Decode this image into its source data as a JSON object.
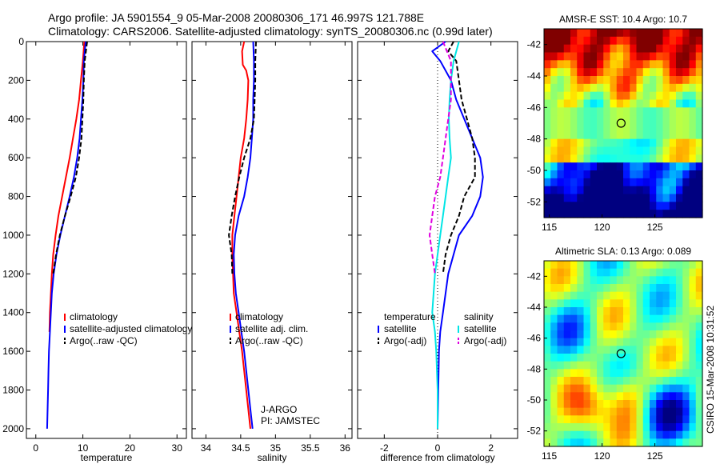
{
  "header": {
    "line1": "Argo profile: JA 5901554_9 05-Mar-2008 20080306_171 46.997S 121.788E",
    "line2": "Climatology: CARS2006. Satellite-adjusted climatology: synTS_20080306.nc (0.99d later)"
  },
  "side_label": "CSIRO 15-Mar-2008 10:31:52",
  "colors": {
    "red": "#ff0000",
    "blue": "#0000ff",
    "black": "#000000",
    "cyan": "#00e5e5",
    "magenta": "#e000e0"
  },
  "chart_data": [
    {
      "type": "line",
      "id": "temperature",
      "xlabel": "temperature",
      "ylabel": "",
      "xlim": [
        -2,
        32
      ],
      "ylim": [
        2050,
        0
      ],
      "xticks": [
        0,
        10,
        20,
        30
      ],
      "yticks": [
        0,
        200,
        400,
        600,
        800,
        1000,
        1200,
        1400,
        1600,
        1800,
        2000
      ],
      "legend": [
        "climatology",
        "satellite-adjusted climatology",
        "Argo(..raw -QC)"
      ],
      "legend_position": "lower-center",
      "series": [
        {
          "name": "climatology",
          "color": "red",
          "dash": "solid",
          "points": [
            [
              10.3,
              0
            ],
            [
              10.0,
              100
            ],
            [
              9.6,
              200
            ],
            [
              9.2,
              300
            ],
            [
              8.6,
              400
            ],
            [
              7.9,
              500
            ],
            [
              7.2,
              600
            ],
            [
              6.4,
              700
            ],
            [
              5.6,
              800
            ],
            [
              4.8,
              900
            ],
            [
              4.2,
              1000
            ],
            [
              3.7,
              1100
            ],
            [
              3.4,
              1200
            ],
            [
              3.2,
              1300
            ],
            [
              3.0,
              1400
            ],
            [
              2.9,
              1500
            ]
          ]
        },
        {
          "name": "satellite-adjusted climatology",
          "color": "blue",
          "dash": "solid",
          "points": [
            [
              10.6,
              0
            ],
            [
              10.2,
              100
            ],
            [
              10.1,
              200
            ],
            [
              9.9,
              300
            ],
            [
              9.6,
              400
            ],
            [
              9.3,
              500
            ],
            [
              8.8,
              600
            ],
            [
              8.1,
              700
            ],
            [
              7.2,
              800
            ],
            [
              6.2,
              900
            ],
            [
              5.2,
              1000
            ],
            [
              4.4,
              1100
            ],
            [
              3.8,
              1200
            ],
            [
              3.4,
              1300
            ],
            [
              3.2,
              1400
            ],
            [
              3.0,
              1500
            ],
            [
              2.8,
              1600
            ],
            [
              2.7,
              1700
            ],
            [
              2.6,
              1800
            ],
            [
              2.5,
              1900
            ],
            [
              2.4,
              2000
            ]
          ]
        },
        {
          "name": "Argo(..raw -QC)",
          "color": "black",
          "dash": "dash",
          "points": [
            [
              10.9,
              0
            ],
            [
              10.4,
              100
            ],
            [
              10.2,
              200
            ],
            [
              10.1,
              300
            ],
            [
              9.9,
              400
            ],
            [
              9.7,
              500
            ],
            [
              9.2,
              600
            ],
            [
              8.5,
              700
            ],
            [
              7.4,
              800
            ],
            [
              6.2,
              900
            ],
            [
              5.1,
              1000
            ],
            [
              4.3,
              1100
            ],
            [
              3.7,
              1200
            ]
          ]
        }
      ]
    },
    {
      "type": "line",
      "id": "salinity",
      "xlabel": "salinity",
      "ylabel": "",
      "xlim": [
        33.8,
        36.1
      ],
      "ylim": [
        2050,
        0
      ],
      "xticks": [
        34,
        34.5,
        35,
        35.5,
        36
      ],
      "yticks": [],
      "legend": [
        "climatology",
        "satellite adj. clim.",
        "Argo(..raw -QC)"
      ],
      "legend_position": "lower-center",
      "annotation": [
        "J-ARGO",
        "PI: JAMSTEC"
      ],
      "series": [
        {
          "name": "climatology",
          "color": "red",
          "dash": "solid",
          "points": [
            [
              34.55,
              0
            ],
            [
              34.52,
              50
            ],
            [
              34.53,
              120
            ],
            [
              34.58,
              150
            ],
            [
              34.61,
              200
            ],
            [
              34.6,
              300
            ],
            [
              34.58,
              400
            ],
            [
              34.55,
              500
            ],
            [
              34.5,
              600
            ],
            [
              34.47,
              700
            ],
            [
              34.44,
              800
            ],
            [
              34.41,
              900
            ],
            [
              34.38,
              1000
            ],
            [
              34.38,
              1100
            ],
            [
              34.39,
              1200
            ],
            [
              34.4,
              1300
            ],
            [
              34.44,
              1400
            ],
            [
              34.48,
              1500
            ],
            [
              34.52,
              1600
            ],
            [
              34.55,
              1700
            ],
            [
              34.58,
              1800
            ],
            [
              34.61,
              1900
            ],
            [
              34.64,
              2000
            ]
          ]
        },
        {
          "name": "satellite adj. clim.",
          "color": "blue",
          "dash": "solid",
          "points": [
            [
              34.68,
              0
            ],
            [
              34.69,
              100
            ],
            [
              34.69,
              200
            ],
            [
              34.68,
              300
            ],
            [
              34.68,
              400
            ],
            [
              34.66,
              500
            ],
            [
              34.64,
              600
            ],
            [
              34.6,
              700
            ],
            [
              34.55,
              800
            ],
            [
              34.47,
              900
            ],
            [
              34.42,
              1000
            ],
            [
              34.4,
              1100
            ],
            [
              34.41,
              1200
            ],
            [
              34.43,
              1300
            ],
            [
              34.47,
              1400
            ],
            [
              34.51,
              1500
            ],
            [
              34.55,
              1600
            ],
            [
              34.58,
              1700
            ],
            [
              34.61,
              1800
            ],
            [
              34.64,
              1900
            ],
            [
              34.67,
              2000
            ]
          ]
        },
        {
          "name": "Argo(..raw -QC)",
          "color": "black",
          "dash": "dash",
          "points": [
            [
              34.72,
              0
            ],
            [
              34.71,
              100
            ],
            [
              34.71,
              200
            ],
            [
              34.7,
              300
            ],
            [
              34.69,
              400
            ],
            [
              34.64,
              500
            ],
            [
              34.55,
              600
            ],
            [
              34.48,
              700
            ],
            [
              34.42,
              800
            ],
            [
              34.37,
              900
            ],
            [
              34.33,
              1000
            ],
            [
              34.37,
              1100
            ],
            [
              34.38,
              1200
            ]
          ]
        }
      ]
    },
    {
      "type": "line",
      "id": "difference",
      "xlabel": "difference from climatology",
      "ylabel": "",
      "xlim": [
        -3,
        3
      ],
      "ylim": [
        2050,
        0
      ],
      "xticks": [
        -2,
        0,
        2
      ],
      "yticks": [],
      "legend_groups": [
        {
          "title": "temperature",
          "entries": [
            "satellite",
            "Argo(-adj)"
          ]
        },
        {
          "title": "salinity",
          "entries": [
            "satellite",
            "Argo(-adj)"
          ]
        }
      ],
      "legend_position": "lower-center",
      "series": [
        {
          "name": "temperature satellite",
          "color": "blue",
          "dash": "solid",
          "points": [
            [
              0.3,
              0
            ],
            [
              -0.2,
              50
            ],
            [
              0.1,
              100
            ],
            [
              0.5,
              200
            ],
            [
              0.7,
              300
            ],
            [
              1.0,
              400
            ],
            [
              1.3,
              500
            ],
            [
              1.6,
              600
            ],
            [
              1.7,
              700
            ],
            [
              1.6,
              800
            ],
            [
              1.3,
              900
            ],
            [
              0.8,
              1000
            ],
            [
              0.6,
              1100
            ],
            [
              0.4,
              1200
            ],
            [
              0.3,
              1300
            ],
            [
              0.2,
              1400
            ],
            [
              0.1,
              1500
            ],
            [
              0.05,
              1600
            ],
            [
              0.0,
              2000
            ]
          ]
        },
        {
          "name": "temperature Argo(-adj)",
          "color": "black",
          "dash": "dash",
          "points": [
            [
              0.6,
              0
            ],
            [
              0.4,
              50
            ],
            [
              0.7,
              100
            ],
            [
              0.8,
              200
            ],
            [
              0.9,
              300
            ],
            [
              1.1,
              400
            ],
            [
              1.3,
              500
            ],
            [
              1.4,
              600
            ],
            [
              1.4,
              700
            ],
            [
              1.0,
              800
            ],
            [
              0.8,
              900
            ],
            [
              0.5,
              1000
            ],
            [
              0.3,
              1100
            ],
            [
              0.2,
              1200
            ]
          ]
        },
        {
          "name": "salinity satellite",
          "color": "cyan",
          "dash": "solid",
          "points": [
            [
              0.8,
              0
            ],
            [
              0.6,
              100
            ],
            [
              0.5,
              200
            ],
            [
              0.45,
              300
            ],
            [
              0.42,
              400
            ],
            [
              0.45,
              500
            ],
            [
              0.5,
              600
            ],
            [
              0.4,
              700
            ],
            [
              0.3,
              800
            ],
            [
              0.2,
              900
            ],
            [
              0.1,
              1000
            ],
            [
              0.0,
              1100
            ],
            [
              -0.1,
              1200
            ],
            [
              -0.15,
              1300
            ],
            [
              -0.2,
              1400
            ],
            [
              -0.1,
              1500
            ],
            [
              -0.05,
              1600
            ],
            [
              0.0,
              1800
            ],
            [
              0.0,
              2000
            ]
          ]
        },
        {
          "name": "salinity Argo(-adj)",
          "color": "magenta",
          "dash": "dash",
          "points": [
            [
              0.2,
              0
            ],
            [
              0.5,
              100
            ],
            [
              0.5,
              200
            ],
            [
              0.5,
              300
            ],
            [
              0.4,
              400
            ],
            [
              0.3,
              500
            ],
            [
              0.2,
              600
            ],
            [
              0.1,
              700
            ],
            [
              -0.1,
              800
            ],
            [
              -0.2,
              900
            ],
            [
              -0.3,
              1000
            ],
            [
              -0.2,
              1100
            ],
            [
              -0.1,
              1200
            ]
          ]
        }
      ]
    },
    {
      "type": "heatmap",
      "id": "sst-map",
      "title": "AMSR-E SST: 10.4 Argo: 10.7",
      "xlim": [
        114.5,
        129.5
      ],
      "ylim": [
        -53,
        -41
      ],
      "xticks": [
        115,
        120,
        125
      ],
      "yticks": [
        -42,
        -44,
        -46,
        -48,
        -50,
        -52
      ],
      "marker": {
        "x": 121.8,
        "y": -47.0
      }
    },
    {
      "type": "heatmap",
      "id": "sla-map",
      "title": "Altimetric SLA: 0.13 Argo: 0.089",
      "xlim": [
        114.5,
        129.5
      ],
      "ylim": [
        -53,
        -41
      ],
      "xticks": [
        115,
        120,
        125
      ],
      "yticks": [
        -42,
        -44,
        -46,
        -48,
        -50,
        -52
      ],
      "marker": {
        "x": 121.8,
        "y": -47.0
      }
    }
  ]
}
